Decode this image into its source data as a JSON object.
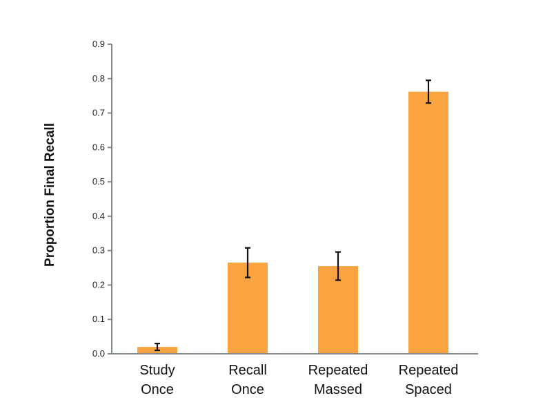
{
  "chart_data": {
    "type": "bar",
    "categories": [
      [
        "Study",
        "Once"
      ],
      [
        "Recall",
        "Once"
      ],
      [
        "Repeated",
        "Massed"
      ],
      [
        "Repeated",
        "Spaced"
      ]
    ],
    "values": [
      0.02,
      0.265,
      0.255,
      0.762
    ],
    "error": [
      0.01,
      0.043,
      0.041,
      0.033
    ],
    "ylabel": "Proportion Final Recall",
    "xlabel": "",
    "ylim": [
      0,
      0.9
    ],
    "yticks": [
      "0.0",
      "0.1",
      "0.2",
      "0.3",
      "0.4",
      "0.5",
      "0.6",
      "0.7",
      "0.8",
      "0.9"
    ],
    "bar_color": "#f9a440",
    "axis_color": "#7f8c8a",
    "grid": false
  }
}
